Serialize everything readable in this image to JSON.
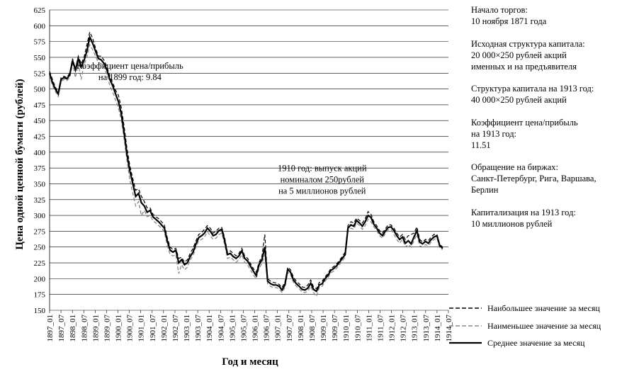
{
  "chart_data": {
    "type": "line",
    "title": "",
    "xlabel": "Год и месяц",
    "ylabel": "Цена одной ценной бумаги (рублей)",
    "ylim": [
      150,
      625
    ],
    "yticks": [
      150,
      175,
      200,
      225,
      250,
      275,
      300,
      325,
      350,
      375,
      400,
      425,
      450,
      475,
      500,
      525,
      550,
      575,
      600,
      625
    ],
    "grid": "horizontal",
    "legend_position": "bottom-right",
    "x_tick_labels": [
      "1897_01",
      "1897_07",
      "1898_01",
      "1898_07",
      "1899_01",
      "1899_07",
      "1900_01",
      "1900_07",
      "1901_01",
      "1901_07",
      "1902_01",
      "1902_07",
      "1903_01",
      "1903_07",
      "1904_01",
      "1904_07",
      "1905_01",
      "1905_07",
      "1906_01",
      "1906_07",
      "1907_01",
      "1907_07",
      "1908_01",
      "1908_07",
      "1909_01",
      "1909_07",
      "1910_01",
      "1910_07",
      "1911_01",
      "1911_07",
      "1912_01",
      "1912_07",
      "1913_01",
      "1913_07",
      "1914_01",
      "1914_07"
    ],
    "avg_points": [
      [
        0,
        525
      ],
      [
        1,
        510
      ],
      [
        2,
        500
      ],
      [
        3,
        492
      ],
      [
        4,
        515
      ],
      [
        5,
        518
      ],
      [
        6,
        516
      ],
      [
        7,
        522
      ],
      [
        8,
        545
      ],
      [
        9,
        530
      ],
      [
        10,
        548
      ],
      [
        11,
        535
      ],
      [
        12,
        545
      ],
      [
        13,
        560
      ],
      [
        14,
        582
      ],
      [
        15,
        572
      ],
      [
        16,
        560
      ],
      [
        17,
        548
      ],
      [
        18,
        546
      ],
      [
        19,
        540
      ],
      [
        20,
        530
      ],
      [
        21,
        515
      ],
      [
        22,
        505
      ],
      [
        23,
        492
      ],
      [
        24,
        480
      ],
      [
        25,
        460
      ],
      [
        26,
        430
      ],
      [
        27,
        395
      ],
      [
        28,
        370
      ],
      [
        29,
        350
      ],
      [
        30,
        330
      ],
      [
        31,
        335
      ],
      [
        32,
        320
      ],
      [
        33,
        315
      ],
      [
        34,
        305
      ],
      [
        35,
        308
      ],
      [
        36,
        298
      ],
      [
        37,
        294
      ],
      [
        38,
        290
      ],
      [
        39,
        285
      ],
      [
        40,
        280
      ],
      [
        41,
        260
      ],
      [
        42,
        245
      ],
      [
        43,
        242
      ],
      [
        44,
        245
      ],
      [
        45,
        225
      ],
      [
        46,
        230
      ],
      [
        47,
        222
      ],
      [
        48,
        225
      ],
      [
        49,
        235
      ],
      [
        50,
        242
      ],
      [
        51,
        255
      ],
      [
        52,
        265
      ],
      [
        53,
        268
      ],
      [
        54,
        272
      ],
      [
        55,
        280
      ],
      [
        56,
        275
      ],
      [
        57,
        268
      ],
      [
        58,
        270
      ],
      [
        59,
        276
      ],
      [
        60,
        278
      ],
      [
        61,
        260
      ],
      [
        62,
        238
      ],
      [
        63,
        240
      ],
      [
        64,
        235
      ],
      [
        65,
        232
      ],
      [
        66,
        236
      ],
      [
        67,
        244
      ],
      [
        68,
        232
      ],
      [
        69,
        228
      ],
      [
        70,
        220
      ],
      [
        71,
        212
      ],
      [
        72,
        205
      ],
      [
        73,
        222
      ],
      [
        74,
        230
      ],
      [
        75,
        250
      ],
      [
        76,
        196
      ],
      [
        77,
        192
      ],
      [
        78,
        190
      ],
      [
        79,
        190
      ],
      [
        80,
        188
      ],
      [
        81,
        182
      ],
      [
        82,
        190
      ],
      [
        83,
        215
      ],
      [
        84,
        210
      ],
      [
        85,
        198
      ],
      [
        86,
        192
      ],
      [
        87,
        188
      ],
      [
        88,
        183
      ],
      [
        89,
        182
      ],
      [
        90,
        185
      ],
      [
        91,
        193
      ],
      [
        92,
        183
      ],
      [
        93,
        180
      ],
      [
        94,
        190
      ],
      [
        95,
        192
      ],
      [
        96,
        200
      ],
      [
        97,
        205
      ],
      [
        98,
        213
      ],
      [
        99,
        216
      ],
      [
        100,
        220
      ],
      [
        101,
        226
      ],
      [
        102,
        232
      ],
      [
        103,
        238
      ],
      [
        104,
        280
      ],
      [
        105,
        285
      ],
      [
        106,
        283
      ],
      [
        107,
        292
      ],
      [
        108,
        288
      ],
      [
        109,
        283
      ],
      [
        110,
        290
      ],
      [
        111,
        300
      ],
      [
        112,
        297
      ],
      [
        113,
        286
      ],
      [
        114,
        280
      ],
      [
        115,
        272
      ],
      [
        116,
        268
      ],
      [
        117,
        275
      ],
      [
        118,
        281
      ],
      [
        119,
        282
      ],
      [
        120,
        276
      ],
      [
        121,
        268
      ],
      [
        122,
        262
      ],
      [
        123,
        266
      ],
      [
        124,
        256
      ],
      [
        125,
        260
      ],
      [
        126,
        255
      ],
      [
        127,
        266
      ],
      [
        128,
        276
      ],
      [
        129,
        258
      ],
      [
        130,
        255
      ],
      [
        131,
        259
      ],
      [
        132,
        256
      ],
      [
        133,
        262
      ],
      [
        134,
        266
      ],
      [
        135,
        268
      ],
      [
        136,
        252
      ],
      [
        137,
        248
      ]
    ],
    "max_points": [
      [
        0,
        528
      ],
      [
        1,
        515
      ],
      [
        2,
        503
      ],
      [
        3,
        495
      ],
      [
        4,
        518
      ],
      [
        5,
        520
      ],
      [
        6,
        518
      ],
      [
        7,
        525
      ],
      [
        8,
        548
      ],
      [
        9,
        532
      ],
      [
        10,
        552
      ],
      [
        11,
        540
      ],
      [
        12,
        550
      ],
      [
        13,
        570
      ],
      [
        14,
        590
      ],
      [
        15,
        580
      ],
      [
        16,
        565
      ],
      [
        17,
        552
      ],
      [
        18,
        552
      ],
      [
        19,
        545
      ],
      [
        20,
        535
      ],
      [
        21,
        520
      ],
      [
        22,
        510
      ],
      [
        23,
        498
      ],
      [
        24,
        490
      ],
      [
        25,
        470
      ],
      [
        26,
        440
      ],
      [
        27,
        405
      ],
      [
        28,
        378
      ],
      [
        29,
        358
      ],
      [
        30,
        340
      ],
      [
        31,
        342
      ],
      [
        32,
        330
      ],
      [
        33,
        322
      ],
      [
        34,
        312
      ],
      [
        35,
        312
      ],
      [
        36,
        302
      ],
      [
        37,
        298
      ],
      [
        38,
        295
      ],
      [
        39,
        290
      ],
      [
        40,
        285
      ],
      [
        41,
        265
      ],
      [
        42,
        250
      ],
      [
        43,
        246
      ],
      [
        44,
        248
      ],
      [
        45,
        232
      ],
      [
        46,
        234
      ],
      [
        47,
        226
      ],
      [
        48,
        230
      ],
      [
        49,
        240
      ],
      [
        50,
        248
      ],
      [
        51,
        260
      ],
      [
        52,
        270
      ],
      [
        53,
        273
      ],
      [
        54,
        278
      ],
      [
        55,
        284
      ],
      [
        56,
        280
      ],
      [
        57,
        272
      ],
      [
        58,
        275
      ],
      [
        59,
        280
      ],
      [
        60,
        281
      ],
      [
        61,
        265
      ],
      [
        62,
        242
      ],
      [
        63,
        244
      ],
      [
        64,
        240
      ],
      [
        65,
        236
      ],
      [
        66,
        240
      ],
      [
        67,
        248
      ],
      [
        68,
        236
      ],
      [
        69,
        232
      ],
      [
        70,
        224
      ],
      [
        71,
        216
      ],
      [
        72,
        210
      ],
      [
        73,
        226
      ],
      [
        74,
        235
      ],
      [
        75,
        270
      ],
      [
        76,
        200
      ],
      [
        77,
        196
      ],
      [
        78,
        194
      ],
      [
        79,
        193
      ],
      [
        80,
        191
      ],
      [
        81,
        186
      ],
      [
        82,
        194
      ],
      [
        83,
        218
      ],
      [
        84,
        214
      ],
      [
        85,
        202
      ],
      [
        86,
        196
      ],
      [
        87,
        192
      ],
      [
        88,
        187
      ],
      [
        89,
        186
      ],
      [
        90,
        190
      ],
      [
        91,
        198
      ],
      [
        92,
        187
      ],
      [
        93,
        184
      ],
      [
        94,
        194
      ],
      [
        95,
        196
      ],
      [
        96,
        203
      ],
      [
        97,
        208
      ],
      [
        98,
        216
      ],
      [
        99,
        219
      ],
      [
        100,
        223
      ],
      [
        101,
        229
      ],
      [
        102,
        235
      ],
      [
        103,
        242
      ],
      [
        104,
        284
      ],
      [
        105,
        290
      ],
      [
        106,
        288
      ],
      [
        107,
        296
      ],
      [
        108,
        292
      ],
      [
        109,
        288
      ],
      [
        110,
        295
      ],
      [
        111,
        306
      ],
      [
        112,
        302
      ],
      [
        113,
        290
      ],
      [
        114,
        284
      ],
      [
        115,
        276
      ],
      [
        116,
        272
      ],
      [
        117,
        279
      ],
      [
        118,
        285
      ],
      [
        119,
        285
      ],
      [
        120,
        280
      ],
      [
        121,
        272
      ],
      [
        122,
        266
      ],
      [
        123,
        270
      ],
      [
        124,
        262
      ],
      [
        125,
        268
      ],
      [
        126,
        270
      ],
      [
        127,
        272
      ],
      [
        128,
        282
      ],
      [
        129,
        262
      ],
      [
        130,
        258
      ],
      [
        131,
        262
      ],
      [
        132,
        260
      ],
      [
        133,
        266
      ],
      [
        134,
        270
      ],
      [
        135,
        270
      ],
      [
        136,
        254
      ],
      [
        137,
        250
      ]
    ],
    "min_points": [
      [
        0,
        522
      ],
      [
        1,
        505
      ],
      [
        2,
        496
      ],
      [
        3,
        488
      ],
      [
        4,
        512
      ],
      [
        5,
        515
      ],
      [
        6,
        513
      ],
      [
        7,
        518
      ],
      [
        8,
        540
      ],
      [
        9,
        518
      ],
      [
        10,
        540
      ],
      [
        11,
        515
      ],
      [
        12,
        538
      ],
      [
        13,
        550
      ],
      [
        14,
        570
      ],
      [
        15,
        562
      ],
      [
        16,
        552
      ],
      [
        17,
        542
      ],
      [
        18,
        540
      ],
      [
        19,
        535
      ],
      [
        20,
        522
      ],
      [
        21,
        505
      ],
      [
        22,
        495
      ],
      [
        23,
        482
      ],
      [
        24,
        470
      ],
      [
        25,
        450
      ],
      [
        26,
        420
      ],
      [
        27,
        385
      ],
      [
        28,
        355
      ],
      [
        29,
        335
      ],
      [
        30,
        315
      ],
      [
        31,
        322
      ],
      [
        32,
        300
      ],
      [
        33,
        308
      ],
      [
        34,
        298
      ],
      [
        35,
        300
      ],
      [
        36,
        292
      ],
      [
        37,
        288
      ],
      [
        38,
        284
      ],
      [
        39,
        280
      ],
      [
        40,
        274
      ],
      [
        41,
        252
      ],
      [
        42,
        238
      ],
      [
        43,
        236
      ],
      [
        44,
        238
      ],
      [
        45,
        208
      ],
      [
        46,
        222
      ],
      [
        47,
        214
      ],
      [
        48,
        218
      ],
      [
        49,
        230
      ],
      [
        50,
        236
      ],
      [
        51,
        250
      ],
      [
        52,
        260
      ],
      [
        53,
        262
      ],
      [
        54,
        266
      ],
      [
        55,
        274
      ],
      [
        56,
        268
      ],
      [
        57,
        262
      ],
      [
        58,
        264
      ],
      [
        59,
        270
      ],
      [
        60,
        272
      ],
      [
        61,
        254
      ],
      [
        62,
        232
      ],
      [
        63,
        234
      ],
      [
        64,
        230
      ],
      [
        65,
        226
      ],
      [
        66,
        230
      ],
      [
        67,
        238
      ],
      [
        68,
        226
      ],
      [
        69,
        222
      ],
      [
        70,
        214
      ],
      [
        71,
        206
      ],
      [
        72,
        200
      ],
      [
        73,
        216
      ],
      [
        74,
        224
      ],
      [
        75,
        238
      ],
      [
        76,
        192
      ],
      [
        77,
        188
      ],
      [
        78,
        186
      ],
      [
        79,
        186
      ],
      [
        80,
        184
      ],
      [
        81,
        178
      ],
      [
        82,
        186
      ],
      [
        83,
        210
      ],
      [
        84,
        206
      ],
      [
        85,
        194
      ],
      [
        86,
        188
      ],
      [
        87,
        184
      ],
      [
        88,
        179
      ],
      [
        89,
        178
      ],
      [
        90,
        180
      ],
      [
        91,
        188
      ],
      [
        92,
        178
      ],
      [
        93,
        172
      ],
      [
        94,
        186
      ],
      [
        95,
        188
      ],
      [
        96,
        196
      ],
      [
        97,
        201
      ],
      [
        98,
        209
      ],
      [
        99,
        212
      ],
      [
        100,
        216
      ],
      [
        101,
        222
      ],
      [
        102,
        228
      ],
      [
        103,
        234
      ],
      [
        104,
        276
      ],
      [
        105,
        280
      ],
      [
        106,
        278
      ],
      [
        107,
        288
      ],
      [
        108,
        284
      ],
      [
        109,
        278
      ],
      [
        110,
        284
      ],
      [
        111,
        294
      ],
      [
        112,
        290
      ],
      [
        113,
        282
      ],
      [
        114,
        276
      ],
      [
        115,
        268
      ],
      [
        116,
        264
      ],
      [
        117,
        271
      ],
      [
        118,
        277
      ],
      [
        119,
        278
      ],
      [
        120,
        270
      ],
      [
        121,
        262
      ],
      [
        122,
        256
      ],
      [
        123,
        262
      ],
      [
        124,
        250
      ],
      [
        125,
        254
      ],
      [
        126,
        250
      ],
      [
        127,
        260
      ],
      [
        128,
        270
      ],
      [
        129,
        252
      ],
      [
        130,
        250
      ],
      [
        131,
        254
      ],
      [
        132,
        252
      ],
      [
        133,
        258
      ],
      [
        134,
        262
      ],
      [
        135,
        264
      ],
      [
        136,
        248
      ],
      [
        137,
        246
      ]
    ],
    "x_index_range": [
      0,
      139
    ],
    "legend": [
      {
        "key": "max",
        "label": "Наибольшее значение за месяц",
        "style": "dashed-black"
      },
      {
        "key": "min",
        "label": "Наименьшее значение за месяц",
        "style": "dashed-gray"
      },
      {
        "key": "avg",
        "label": "Среднее значение за месяц",
        "style": "solid-black"
      }
    ],
    "annotations": [
      {
        "lines": [
          "Коэффициент цена/прибыль",
          "на 1899 год: 9.84"
        ],
        "x_index": 28,
        "y": 532
      },
      {
        "lines": [
          "1910 год: выпуск акций",
          "номиналом 250рублей",
          "на 5 миллионов рублей"
        ],
        "x_index": 95,
        "y": 370
      }
    ],
    "colors": {
      "avg": "#000000",
      "max": "#000000",
      "min": "#888888",
      "grid": "#000000"
    }
  },
  "side_notes": [
    [
      "Начало торгов:",
      "10 ноября 1871 года"
    ],
    [
      "Исходная структура капитала:",
      "20 000×250 рублей акций",
      "именных и на предъявителя"
    ],
    [
      "Структура капитала на 1913 год:",
      "40 000×250 рублей акций"
    ],
    [
      "Коэффициент цена/прибыль",
      "на 1913 год:",
      "11.51"
    ],
    [
      "Обращение на биржах:",
      "Санкт-Петербург, Рига, Варшава,",
      "Берлин"
    ],
    [
      "Капитализация на 1913 год:",
      "10 миллионов рублей"
    ]
  ]
}
